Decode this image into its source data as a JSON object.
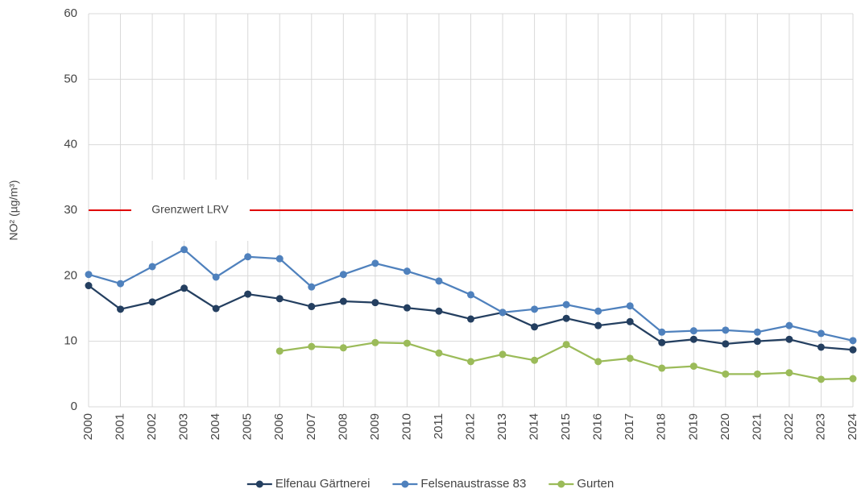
{
  "chart_data": {
    "type": "line",
    "y_label": "NO² (µg/m³)",
    "categories": [
      "2000",
      "2001",
      "2002",
      "2003",
      "2004",
      "2005",
      "2006",
      "2007",
      "2008",
      "2009",
      "2010",
      "2011",
      "2012",
      "2013",
      "2014",
      "2015",
      "2016",
      "2017",
      "2018",
      "2019",
      "2020",
      "2021",
      "2022",
      "2023",
      "2024"
    ],
    "series": [
      {
        "name": "Elfenau Gärtnerei",
        "color": "#243f60",
        "values": [
          18.5,
          14.9,
          16.0,
          18.1,
          15.0,
          17.2,
          16.5,
          15.3,
          16.1,
          15.9,
          15.1,
          14.6,
          13.4,
          14.4,
          12.2,
          13.5,
          12.4,
          13.0,
          9.8,
          10.3,
          9.6,
          10.0,
          10.3,
          9.1,
          8.7
        ]
      },
      {
        "name": "Felsenaustrasse 83",
        "color": "#4f81bd",
        "values": [
          20.2,
          18.8,
          21.4,
          24.0,
          19.8,
          22.9,
          22.6,
          18.3,
          20.2,
          21.9,
          20.7,
          19.2,
          17.1,
          14.4,
          14.9,
          15.6,
          14.6,
          15.4,
          11.4,
          11.6,
          11.7,
          11.4,
          12.4,
          11.2,
          10.1
        ]
      },
      {
        "name": "Gurten",
        "color": "#9bbb59",
        "values": [
          null,
          null,
          null,
          null,
          null,
          null,
          8.5,
          9.2,
          9.0,
          9.8,
          9.7,
          8.2,
          6.9,
          8.0,
          7.1,
          9.5,
          6.9,
          7.4,
          5.9,
          6.2,
          5.0,
          5.0,
          5.2,
          4.2,
          4.3
        ]
      }
    ],
    "annotations": [
      {
        "label": "Grenzwert LRV",
        "value": 30,
        "color": "#e00000"
      }
    ],
    "ylim": [
      0,
      60
    ],
    "yticks": [
      0,
      10,
      20,
      30,
      40,
      50,
      60
    ],
    "grid": true,
    "legend": "bottom"
  }
}
